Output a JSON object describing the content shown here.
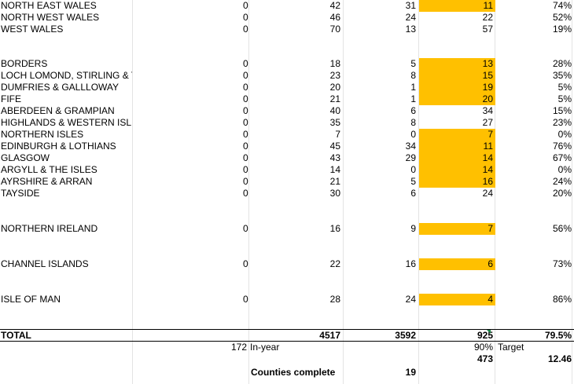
{
  "rows": [
    {
      "name": "NORTH EAST WALES",
      "b": "0",
      "c": "42",
      "d": "31",
      "e": "11",
      "f": "74%",
      "hl": true
    },
    {
      "name": "NORTH WEST WALES",
      "b": "0",
      "c": "46",
      "d": "24",
      "e": "22",
      "f": "52%",
      "hl": false
    },
    {
      "name": "WEST WALES",
      "b": "0",
      "c": "70",
      "d": "13",
      "e": "57",
      "f": "19%",
      "hl": false
    },
    {
      "name": "BORDERS",
      "b": "0",
      "c": "18",
      "d": "5",
      "e": "13",
      "f": "28%",
      "hl": true
    },
    {
      "name": "LOCH LOMOND, STIRLING & T",
      "b": "0",
      "c": "23",
      "d": "8",
      "e": "15",
      "f": "35%",
      "hl": true
    },
    {
      "name": "DUMFRIES & GALLLOWAY",
      "b": "0",
      "c": "20",
      "d": "1",
      "e": "19",
      "f": "5%",
      "hl": true
    },
    {
      "name": "FIFE",
      "b": "0",
      "c": "21",
      "d": "1",
      "e": "20",
      "f": "5%",
      "hl": true
    },
    {
      "name": "ABERDEEN & GRAMPIAN",
      "b": "0",
      "c": "40",
      "d": "6",
      "e": "34",
      "f": "15%",
      "hl": false
    },
    {
      "name": "HIGHLANDS & WESTERN ISL",
      "b": "0",
      "c": "35",
      "d": "8",
      "e": "27",
      "f": "23%",
      "hl": false
    },
    {
      "name": "NORTHERN ISLES",
      "b": "0",
      "c": "7",
      "d": "0",
      "e": "7",
      "f": "0%",
      "hl": true
    },
    {
      "name": "EDINBURGH & LOTHIANS",
      "b": "0",
      "c": "45",
      "d": "34",
      "e": "11",
      "f": "76%",
      "hl": true
    },
    {
      "name": "GLASGOW",
      "b": "0",
      "c": "43",
      "d": "29",
      "e": "14",
      "f": "67%",
      "hl": true
    },
    {
      "name": "ARGYLL & THE ISLES",
      "b": "0",
      "c": "14",
      "d": "0",
      "e": "14",
      "f": "0%",
      "hl": true
    },
    {
      "name": "AYRSHIRE & ARRAN",
      "b": "0",
      "c": "21",
      "d": "5",
      "e": "16",
      "f": "24%",
      "hl": true
    },
    {
      "name": "TAYSIDE",
      "b": "0",
      "c": "30",
      "d": "6",
      "e": "24",
      "f": "20%",
      "hl": false
    },
    {
      "name": "NORTHERN IRELAND",
      "b": "0",
      "c": "16",
      "d": "9",
      "e": "7",
      "f": "56%",
      "hl": true
    },
    {
      "name": "CHANNEL ISLANDS",
      "b": "0",
      "c": "22",
      "d": "16",
      "e": "6",
      "f": "73%",
      "hl": true
    },
    {
      "name": "ISLE OF MAN",
      "b": "0",
      "c": "28",
      "d": "24",
      "e": "4",
      "f": "86%",
      "hl": true
    }
  ],
  "total": {
    "label": "TOTAL",
    "c": "4517",
    "d": "3592",
    "e": "925",
    "f": "79.5%"
  },
  "in_year": {
    "value": "172",
    "label": "In-year"
  },
  "target": {
    "value": "90%",
    "label": "Target"
  },
  "extra": {
    "e": "473",
    "f": "12.46"
  },
  "counties": {
    "label": "Counties complete",
    "value": "19"
  },
  "colors": {
    "highlight": "#ffc000",
    "grid": "#e3e3e3"
  }
}
